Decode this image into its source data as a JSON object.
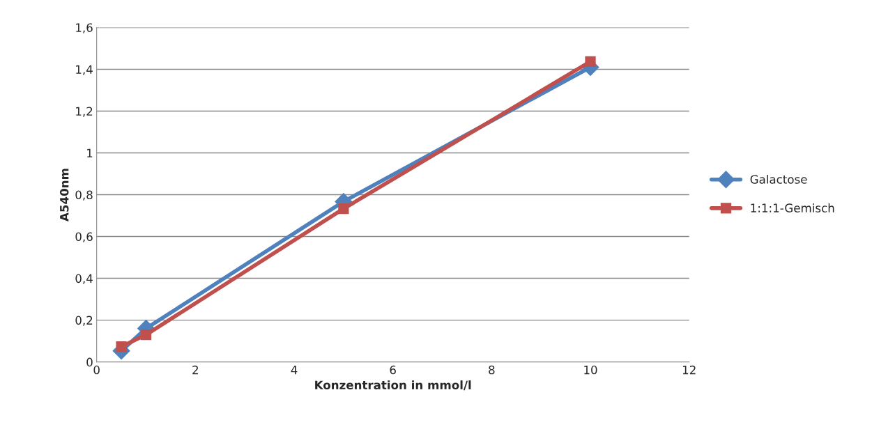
{
  "chart_data": {
    "type": "line",
    "xlabel": "Konzentration in mmol/l",
    "ylabel": "A540nm",
    "x": [
      0.5,
      1,
      5,
      10
    ],
    "series": [
      {
        "name": "Galactose",
        "color": "#4f81bd",
        "marker": "diamond",
        "values": [
          0.053,
          0.16,
          0.767,
          1.41
        ]
      },
      {
        "name": "1:1:1-Gemisch",
        "color": "#c0504d",
        "marker": "square",
        "values": [
          0.073,
          0.13,
          0.733,
          1.437
        ]
      }
    ],
    "xlim": [
      0,
      12
    ],
    "xticks": [
      0,
      2,
      4,
      6,
      8,
      10,
      12
    ],
    "ylim": [
      0,
      1.6
    ],
    "yticks": [
      0,
      {
        "value": 0.2,
        "label": "0,2"
      },
      {
        "value": 0.4,
        "label": "0,4"
      },
      {
        "value": 0.6,
        "label": "0,6"
      },
      {
        "value": 0.8,
        "label": "0,8"
      },
      1,
      {
        "value": 1.2,
        "label": "1,2"
      },
      {
        "value": 1.4,
        "label": "1,4"
      },
      {
        "value": 1.6,
        "label": "1,6"
      }
    ],
    "grid": "y",
    "legend": "right"
  }
}
